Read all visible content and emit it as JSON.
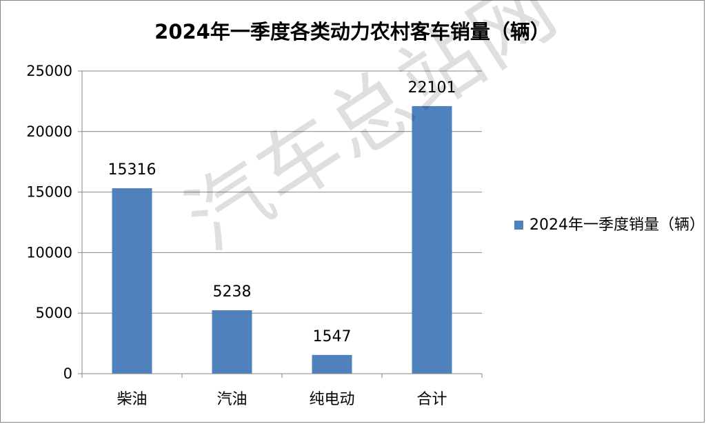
{
  "chart_data": {
    "type": "bar",
    "title": "2024年一季度各类动力农村客车销量（辆）",
    "categories": [
      "柴油",
      "汽油",
      "纯电动",
      "合计"
    ],
    "series": [
      {
        "name": "2024年一季度销量（辆）",
        "values": [
          15316,
          5238,
          1547,
          22101
        ],
        "color": "#4f81bd"
      }
    ],
    "ylim": [
      0,
      25000
    ],
    "yticks": [
      0,
      5000,
      10000,
      15000,
      20000,
      25000
    ],
    "grid": true,
    "legend": "right"
  },
  "watermark": "汽车总站网"
}
